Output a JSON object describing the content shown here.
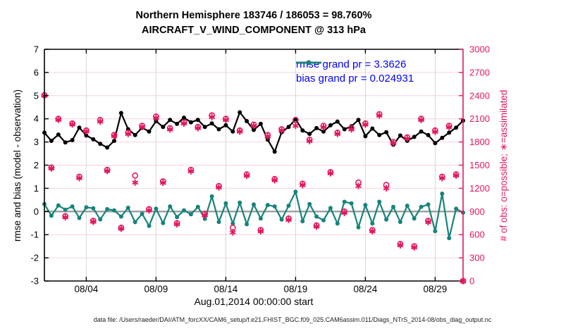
{
  "chart_data": {
    "type": "line",
    "title": "Northern Hemisphere 183746 / 186053 = 98.760%",
    "subtitle": "AIRCRAFT_V_WIND_COMPONENT @ 313 hPa",
    "xlabel": "Aug.01,2014 00:00:00 start",
    "ylabel_left": "rmse and bias (model - observation)",
    "ylabel_right": "# of obs: o=possible; ∗=assimilated",
    "ylim_left": [
      -3,
      7
    ],
    "ylim_right": [
      0,
      3000
    ],
    "xlim_days": [
      0,
      30
    ],
    "grid": true,
    "legend_position": "top-right-inside",
    "xticks": [
      {
        "day": 3,
        "label": "08/04"
      },
      {
        "day": 8,
        "label": "08/09"
      },
      {
        "day": 13,
        "label": "08/14"
      },
      {
        "day": 18,
        "label": "08/19"
      },
      {
        "day": 23,
        "label": "08/24"
      },
      {
        "day": 28,
        "label": "08/29"
      }
    ],
    "yticks_left": [
      -3,
      -2,
      -1,
      0,
      1,
      2,
      3,
      4,
      5,
      6,
      7
    ],
    "yticks_right": [
      0,
      300,
      600,
      900,
      1200,
      1500,
      1800,
      2100,
      2400,
      2700,
      3000
    ],
    "x_days": [
      0,
      0.5,
      1,
      1.5,
      2,
      2.5,
      3,
      3.5,
      4,
      4.5,
      5,
      5.5,
      6,
      6.5,
      7,
      7.5,
      8,
      8.5,
      9,
      9.5,
      10,
      10.5,
      11,
      11.5,
      12,
      12.5,
      13,
      13.5,
      14,
      14.5,
      15,
      15.5,
      16,
      16.5,
      17,
      17.5,
      18,
      18.5,
      19,
      19.5,
      20,
      20.5,
      21,
      21.5,
      22,
      22.5,
      23,
      23.5,
      24,
      24.5,
      25,
      25.5,
      26,
      26.5,
      27,
      27.5,
      28,
      28.5,
      29,
      29.5,
      30
    ],
    "series": [
      {
        "name": "rmse grand pr = 3.3626",
        "color": "#000000",
        "values": [
          3.4,
          3.05,
          3.32,
          2.98,
          3.08,
          3.62,
          3.28,
          3.12,
          2.92,
          2.76,
          3.05,
          4.25,
          3.55,
          3.3,
          3.62,
          3.45,
          3.9,
          3.65,
          3.95,
          3.78,
          4.05,
          3.85,
          3.95,
          3.65,
          3.8,
          3.55,
          3.72,
          3.45,
          4.28,
          3.9,
          3.52,
          3.78,
          3.1,
          2.58,
          3.42,
          3.65,
          3.98,
          3.5,
          3.35,
          3.6,
          3.45,
          3.72,
          3.88,
          3.55,
          3.68,
          3.95,
          3.25,
          3.58,
          3.3,
          3.42,
          2.88,
          3.28,
          3.05,
          3.22,
          3.45,
          3.3,
          2.95,
          3.18,
          3.4,
          3.62,
          3.92
        ]
      },
      {
        "name": "bias grand pr = 0.024931",
        "color": "#17837b",
        "values": [
          0.32,
          -0.18,
          0.26,
          0.08,
          0.22,
          -0.28,
          0.18,
          0.14,
          -0.34,
          0.1,
          0.05,
          -0.22,
          0.16,
          -0.46,
          -0.1,
          -0.62,
          0.12,
          -0.5,
          0.22,
          -0.24,
          0.05,
          -0.12,
          0.2,
          -0.32,
          0.65,
          -0.45,
          0.35,
          -0.52,
          0.38,
          -0.55,
          0.3,
          -0.3,
          0.28,
          0.22,
          -0.35,
          0.25,
          0.85,
          -0.42,
          0.32,
          -0.22,
          -0.38,
          0.15,
          -0.52,
          0.42,
          0.35,
          -0.68,
          0.28,
          -0.52,
          0.42,
          -0.35,
          0.2,
          -0.45,
          0.25,
          -0.3,
          0.2,
          0.3,
          -0.85,
          0.77,
          -1.15,
          0.12,
          -0.05
        ]
      }
    ],
    "obs_series": [
      {
        "name": "possible",
        "marker": "circle",
        "values": [
          2406,
          1470,
          2100,
          840,
          2040,
          1350,
          1950,
          780,
          2085,
          1440,
          1890,
          690,
          1920,
          1365,
          2010,
          930,
          2130,
          1290,
          1980,
          750,
          2055,
          1440,
          1995,
          870,
          2145,
          1230,
          2100,
          690,
          1950,
          1380,
          2025,
          660,
          1890,
          1320,
          1965,
          810,
          2085,
          1260,
          1830,
          720,
          2010,
          1410,
          1920,
          900,
          1980,
          1275,
          2040,
          660,
          2160,
          1245,
          1800,
          480,
          1860,
          450,
          2100,
          780,
          1950,
          1350,
          2010,
          1380,
          0
        ]
      },
      {
        "name": "assimilated",
        "marker": "asterisk",
        "values": [
          2400,
          1458,
          2088,
          825,
          2028,
          1332,
          1938,
          768,
          2064,
          1425,
          1875,
          678,
          1905,
          1275,
          1995,
          915,
          2112,
          1272,
          1962,
          735,
          2040,
          1422,
          1980,
          852,
          2124,
          1212,
          2085,
          630,
          1935,
          1362,
          2010,
          645,
          1872,
          1305,
          1950,
          792,
          2010,
          1242,
          1812,
          705,
          1992,
          1395,
          1905,
          882,
          1962,
          1230,
          2025,
          645,
          2142,
          1200,
          1785,
          462,
          1845,
          435,
          2085,
          762,
          1932,
          1332,
          1992,
          1365,
          0
        ]
      }
    ],
    "colors": {
      "obs": "#e4175e",
      "grid_horizontal": "#f6d2de",
      "grid_vertical": "#d6d6d6",
      "zero_line": "#9d9d9d",
      "legend_text": "#0000ff",
      "axis_left": "#000000",
      "axis_right": "#e4175e"
    }
  },
  "legend": {
    "items": [
      {
        "label": "rmse grand pr = 3.3626",
        "color": "#000000"
      },
      {
        "label": "bias grand pr = 0.024931",
        "color": "#17837b"
      }
    ]
  },
  "footer": {
    "data_file": "data file: /Users/raeder/DAI/ATM_forcXX/CAM6_setup/f.e21.FHIST_BGC.f09_025.CAM6assim.011/Diags_NTrS_2014-08/obs_diag_output.nc"
  }
}
